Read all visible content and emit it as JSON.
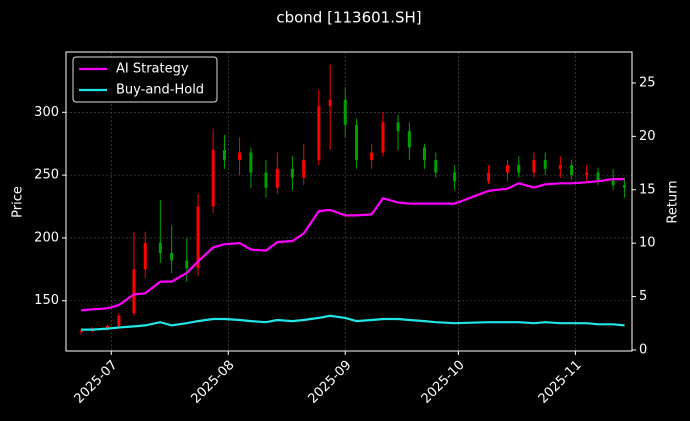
{
  "chart_data": {
    "type": "candlestick",
    "title": "cbond [113601.SH]",
    "ylabel": "Price",
    "y2label": "Return",
    "x": [
      "2025-06-23",
      "2025-06-26",
      "2025-06-30",
      "2025-07-03",
      "2025-07-07",
      "2025-07-10",
      "2025-07-14",
      "2025-07-17",
      "2025-07-21",
      "2025-07-24",
      "2025-07-28",
      "2025-07-31",
      "2025-08-04",
      "2025-08-07",
      "2025-08-11",
      "2025-08-14",
      "2025-08-18",
      "2025-08-21",
      "2025-08-25",
      "2025-08-28",
      "2025-09-01",
      "2025-09-04",
      "2025-09-08",
      "2025-09-11",
      "2025-09-15",
      "2025-09-18",
      "2025-09-22",
      "2025-09-25",
      "2025-09-30",
      "2025-10-09",
      "2025-10-14",
      "2025-10-17",
      "2025-10-21",
      "2025-10-24",
      "2025-10-28",
      "2025-10-31",
      "2025-11-04",
      "2025-11-07",
      "2025-11-11",
      "2025-11-14"
    ],
    "open": [
      125,
      126,
      128,
      130,
      140,
      175,
      196,
      188,
      182,
      176,
      225,
      270,
      262,
      268,
      252,
      240,
      255,
      248,
      262,
      305,
      310,
      290,
      262,
      268,
      292,
      285,
      272,
      262,
      252,
      245,
      252,
      258,
      252,
      262,
      255,
      258,
      250,
      252,
      246,
      242
    ],
    "high": [
      127,
      129,
      131,
      140,
      205,
      205,
      230,
      210,
      200,
      235,
      287,
      282,
      280,
      272,
      262,
      268,
      265,
      275,
      318,
      338,
      320,
      295,
      275,
      300,
      298,
      292,
      275,
      268,
      258,
      258,
      262,
      265,
      268,
      268,
      265,
      262,
      258,
      256,
      255,
      248
    ],
    "low": [
      123,
      125,
      126,
      128,
      138,
      168,
      180,
      172,
      165,
      170,
      220,
      255,
      250,
      240,
      232,
      235,
      238,
      242,
      258,
      270,
      280,
      255,
      255,
      265,
      270,
      262,
      255,
      248,
      238,
      243,
      245,
      248,
      248,
      250,
      248,
      246,
      245,
      242,
      238,
      232
    ],
    "close": [
      126,
      128,
      130,
      138,
      175,
      196,
      188,
      182,
      176,
      225,
      270,
      262,
      268,
      252,
      240,
      255,
      248,
      262,
      305,
      310,
      290,
      262,
      268,
      292,
      285,
      272,
      262,
      252,
      245,
      252,
      258,
      252,
      262,
      255,
      258,
      250,
      252,
      246,
      242,
      240
    ],
    "up_color": "#ff0000",
    "down_color": "#00a000",
    "series": [
      {
        "name": "AI Strategy",
        "color": "#ff00ff",
        "axis": "y2",
        "values": [
          3.7,
          3.8,
          3.9,
          4.2,
          5.2,
          5.3,
          6.4,
          6.4,
          7.2,
          8.3,
          9.6,
          9.9,
          10.0,
          9.4,
          9.3,
          10.1,
          10.2,
          10.9,
          13.0,
          13.1,
          12.6,
          12.6,
          12.7,
          14.2,
          13.8,
          13.7,
          13.7,
          13.7,
          13.7,
          14.9,
          15.1,
          15.6,
          15.2,
          15.5,
          15.6,
          15.6,
          15.7,
          15.8,
          16.0,
          16.0
        ]
      },
      {
        "name": "Buy-and-Hold",
        "color": "#22e5e5",
        "axis": "y2",
        "values": [
          1.9,
          1.9,
          2.0,
          2.1,
          2.2,
          2.3,
          2.6,
          2.3,
          2.5,
          2.7,
          2.9,
          2.9,
          2.8,
          2.7,
          2.6,
          2.8,
          2.7,
          2.8,
          3.0,
          3.2,
          3.0,
          2.7,
          2.8,
          2.9,
          2.9,
          2.8,
          2.7,
          2.6,
          2.5,
          2.6,
          2.6,
          2.6,
          2.5,
          2.6,
          2.5,
          2.5,
          2.5,
          2.4,
          2.4,
          2.3
        ]
      }
    ],
    "xlim": [
      "2025-06-19",
      "2025-11-16"
    ],
    "xticks": [
      {
        "value": "2025-07-01",
        "label": "2025-07"
      },
      {
        "value": "2025-08-01",
        "label": "2025-08"
      },
      {
        "value": "2025-09-01",
        "label": "2025-09"
      },
      {
        "value": "2025-10-01",
        "label": "2025-10"
      },
      {
        "value": "2025-11-01",
        "label": "2025-11"
      }
    ],
    "ylim": [
      110,
      348
    ],
    "yticks": [
      150,
      200,
      250,
      300
    ],
    "y2lim": [
      -0.1,
      27.9
    ],
    "y2ticks": [
      0,
      5,
      10,
      15,
      20,
      25
    ],
    "grid": true,
    "legend": "upper left"
  }
}
